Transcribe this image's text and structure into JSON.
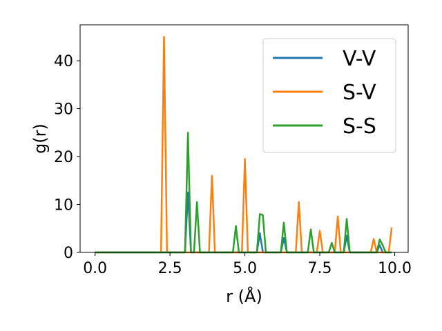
{
  "chart_data": {
    "type": "line",
    "xlabel": "r (Å)",
    "ylabel": "g(r)",
    "xlim": [
      -0.5,
      10.45
    ],
    "ylim": [
      0,
      47.5
    ],
    "xticks": [
      0.0,
      2.5,
      5.0,
      7.5,
      10.0
    ],
    "xtick_labels": [
      "0.0",
      "2.5",
      "5.0",
      "7.5",
      "10.0"
    ],
    "yticks": [
      0,
      10,
      20,
      30,
      40
    ],
    "ytick_labels": [
      "0",
      "10",
      "20",
      "30",
      "40"
    ],
    "grid": false,
    "legend_position": "top-right",
    "x": [
      0.0,
      0.1,
      0.2,
      0.3,
      0.4,
      0.5,
      0.6,
      0.7,
      0.8,
      0.9,
      1.0,
      1.1,
      1.2,
      1.3,
      1.4,
      1.5,
      1.6,
      1.7,
      1.8,
      1.9,
      2.0,
      2.1,
      2.2,
      2.3,
      2.4,
      2.5,
      2.6,
      2.7,
      2.8,
      2.9,
      3.0,
      3.1,
      3.2,
      3.3,
      3.4,
      3.5,
      3.6,
      3.7,
      3.8,
      3.9,
      4.0,
      4.1,
      4.2,
      4.3,
      4.4,
      4.5,
      4.6,
      4.7,
      4.8,
      4.9,
      5.0,
      5.1,
      5.2,
      5.3,
      5.4,
      5.5,
      5.6,
      5.7,
      5.8,
      5.9,
      6.0,
      6.1,
      6.2,
      6.3,
      6.4,
      6.5,
      6.6,
      6.7,
      6.8,
      6.9,
      7.0,
      7.1,
      7.2,
      7.3,
      7.4,
      7.5,
      7.6,
      7.7,
      7.8,
      7.9,
      8.0,
      8.1,
      8.2,
      8.3,
      8.4,
      8.5,
      8.6,
      8.7,
      8.8,
      8.9,
      9.0,
      9.1,
      9.2,
      9.3,
      9.4,
      9.5,
      9.6,
      9.7,
      9.8,
      9.9
    ],
    "series": [
      {
        "name": "V-V",
        "color": "#1f77b4",
        "values": [
          0,
          0,
          0,
          0,
          0,
          0,
          0,
          0,
          0,
          0,
          0,
          0,
          0,
          0,
          0,
          0,
          0,
          0,
          0,
          0,
          0,
          0,
          0,
          0,
          0,
          0,
          0,
          0,
          0,
          0,
          0,
          12.5,
          0,
          0,
          0,
          0,
          0,
          0,
          0,
          0,
          0,
          0,
          0,
          0,
          0,
          0,
          0,
          0,
          0,
          0,
          0,
          0,
          0,
          0,
          0,
          4.0,
          0,
          0,
          0,
          0,
          0,
          0,
          0,
          3.0,
          0,
          0,
          0,
          0,
          0,
          0,
          0,
          0,
          0,
          0,
          0,
          0,
          0,
          0,
          0,
          0,
          0,
          0,
          0,
          0,
          3.5,
          0,
          0,
          0,
          0,
          0,
          0,
          0,
          0,
          0,
          0,
          1.5,
          0,
          0,
          0,
          0
        ]
      },
      {
        "name": "S-V",
        "color": "#ff7f0e",
        "values": [
          0,
          0,
          0,
          0,
          0,
          0,
          0,
          0,
          0,
          0,
          0,
          0,
          0,
          0,
          0,
          0,
          0,
          0,
          0,
          0,
          0,
          0,
          0,
          45.0,
          0,
          0,
          0,
          0,
          0,
          0,
          0,
          0,
          0,
          0,
          0,
          0,
          0,
          0,
          0,
          16.0,
          0,
          0,
          0,
          0,
          0,
          0,
          0,
          0,
          0,
          0,
          19.5,
          0,
          0,
          0,
          0,
          0,
          0,
          0,
          0,
          0,
          0,
          0,
          0,
          0,
          0,
          0,
          0,
          0,
          10.5,
          0,
          0,
          0,
          0,
          0,
          0,
          4.5,
          0,
          0,
          0,
          0,
          0,
          7.5,
          0,
          0,
          0,
          0,
          0,
          0,
          0,
          0,
          0,
          0,
          0,
          2.8,
          0,
          0,
          0,
          0,
          0,
          5.2
        ]
      },
      {
        "name": "S-S",
        "color": "#2ca02c",
        "values": [
          0,
          0,
          0,
          0,
          0,
          0,
          0,
          0,
          0,
          0,
          0,
          0,
          0,
          0,
          0,
          0,
          0,
          0,
          0,
          0,
          0,
          0,
          0,
          0,
          0,
          0,
          0,
          0,
          0,
          0,
          0,
          25.0,
          0,
          0,
          10.5,
          0,
          0,
          0,
          0,
          0,
          0,
          0,
          0,
          0,
          0,
          0,
          0,
          5.5,
          0,
          0,
          0,
          0,
          0,
          0,
          0,
          8.0,
          7.8,
          0,
          0,
          0,
          0,
          0,
          0,
          6.2,
          0,
          0,
          0,
          0,
          0,
          0,
          0,
          0,
          4.8,
          0,
          0,
          0,
          0,
          0,
          0,
          2.0,
          0,
          0,
          0,
          0,
          7.0,
          0,
          0,
          0,
          0,
          0,
          0,
          0,
          0,
          0,
          0,
          2.7,
          1.5,
          0,
          0,
          0
        ]
      }
    ]
  }
}
